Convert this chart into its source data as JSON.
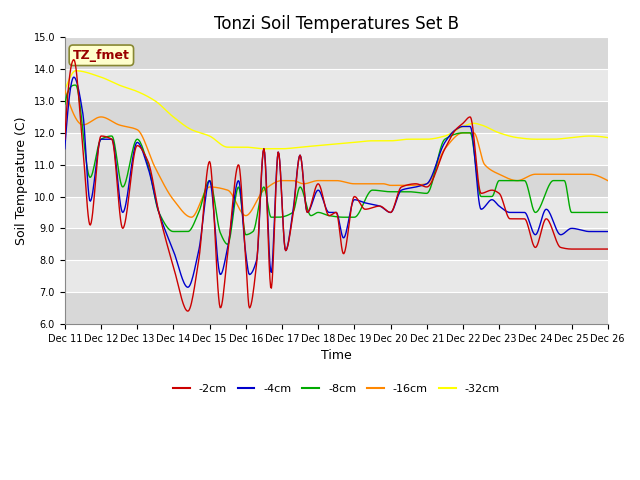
{
  "title": "Tonzi Soil Temperatures Set B",
  "xlabel": "Time",
  "ylabel": "Soil Temperature (C)",
  "ylim": [
    6.0,
    15.0
  ],
  "yticks": [
    6.0,
    7.0,
    8.0,
    9.0,
    10.0,
    11.0,
    12.0,
    13.0,
    14.0,
    15.0
  ],
  "xtick_labels": [
    "Dec 11",
    "Dec 12",
    "Dec 13",
    "Dec 14",
    "Dec 15",
    "Dec 16",
    "Dec 17",
    "Dec 18",
    "Dec 19",
    "Dec 20",
    "Dec 21",
    "Dec 22",
    "Dec 23",
    "Dec 24",
    "Dec 25",
    "Dec 26"
  ],
  "annotation_text": "TZ_fmet",
  "annotation_box_color": "#ffffcc",
  "annotation_text_color": "#990000",
  "annotation_edge_color": "#888833",
  "series_colors": {
    "-2cm": "#cc0000",
    "-4cm": "#0000cc",
    "-8cm": "#00aa00",
    "-16cm": "#ff8800",
    "-32cm": "#ffff00"
  },
  "background_color": "#ffffff",
  "plot_bg_bands": [
    "#e8e8e8",
    "#d8d8d8"
  ],
  "grid_color": "#ffffff",
  "title_fontsize": 12,
  "tick_fontsize": 7,
  "axis_label_fontsize": 9
}
